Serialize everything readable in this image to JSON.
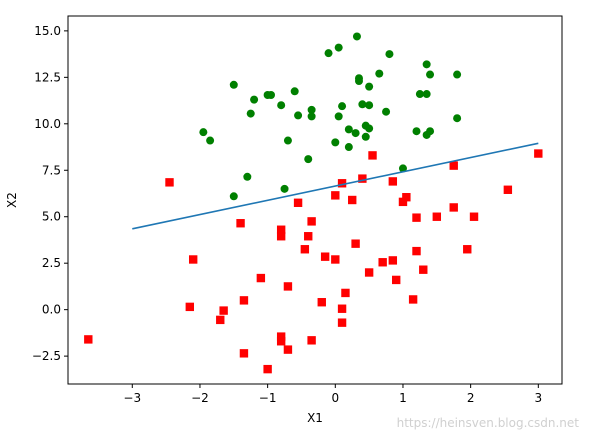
{
  "chart_data": {
    "type": "scatter",
    "xlabel": "X1",
    "ylabel": "X2",
    "xlim": [
      -3.95,
      3.35
    ],
    "ylim": [
      -4.0,
      15.8
    ],
    "x_ticks": [
      -3,
      -2,
      -1,
      0,
      1,
      2,
      3
    ],
    "x_tick_labels": [
      "−3",
      "−2",
      "−1",
      "0",
      "1",
      "2",
      "3"
    ],
    "y_ticks": [
      -2.5,
      0.0,
      2.5,
      5.0,
      7.5,
      10.0,
      12.5,
      15.0
    ],
    "y_tick_labels": [
      "−2.5",
      "0.0",
      "2.5",
      "5.0",
      "7.5",
      "10.0",
      "12.5",
      "15.0"
    ],
    "grid": false,
    "series": [
      {
        "marker": "circle",
        "color": "#008000",
        "points": [
          [
            0.32,
            14.7
          ],
          [
            0.05,
            14.1
          ],
          [
            -0.1,
            13.8
          ],
          [
            0.8,
            13.75
          ],
          [
            1.35,
            13.2
          ],
          [
            0.65,
            12.7
          ],
          [
            1.8,
            12.65
          ],
          [
            1.4,
            12.65
          ],
          [
            0.35,
            12.45
          ],
          [
            0.35,
            12.3
          ],
          [
            -1.5,
            12.1
          ],
          [
            0.5,
            12.0
          ],
          [
            -0.6,
            11.75
          ],
          [
            -1.0,
            11.55
          ],
          [
            -0.95,
            11.55
          ],
          [
            -1.2,
            11.3
          ],
          [
            1.25,
            11.6
          ],
          [
            1.35,
            11.6
          ],
          [
            -0.8,
            11.0
          ],
          [
            0.4,
            11.05
          ],
          [
            0.5,
            11.0
          ],
          [
            0.1,
            10.95
          ],
          [
            -0.35,
            10.75
          ],
          [
            -1.25,
            10.55
          ],
          [
            -0.55,
            10.45
          ],
          [
            0.75,
            10.65
          ],
          [
            -0.35,
            10.4
          ],
          [
            0.05,
            10.4
          ],
          [
            1.8,
            10.3
          ],
          [
            0.45,
            9.9
          ],
          [
            0.5,
            9.75
          ],
          [
            0.2,
            9.7
          ],
          [
            -1.95,
            9.55
          ],
          [
            0.3,
            9.5
          ],
          [
            1.2,
            9.6
          ],
          [
            1.4,
            9.6
          ],
          [
            1.35,
            9.4
          ],
          [
            -1.85,
            9.1
          ],
          [
            0.45,
            9.3
          ],
          [
            -0.7,
            9.1
          ],
          [
            0.0,
            9.0
          ],
          [
            0.2,
            8.75
          ],
          [
            -0.4,
            8.1
          ],
          [
            1.0,
            7.6
          ],
          [
            -1.3,
            7.15
          ],
          [
            -0.75,
            6.5
          ],
          [
            -1.5,
            6.1
          ]
        ]
      },
      {
        "marker": "square",
        "color": "#ff0000",
        "points": [
          [
            3.0,
            8.4
          ],
          [
            0.55,
            8.3
          ],
          [
            1.75,
            7.75
          ],
          [
            0.4,
            7.05
          ],
          [
            0.85,
            6.9
          ],
          [
            -2.45,
            6.85
          ],
          [
            0.1,
            6.8
          ],
          [
            2.55,
            6.45
          ],
          [
            0.0,
            6.15
          ],
          [
            1.05,
            6.05
          ],
          [
            0.25,
            5.9
          ],
          [
            -0.55,
            5.75
          ],
          [
            1.0,
            5.8
          ],
          [
            1.75,
            5.5
          ],
          [
            1.5,
            5.0
          ],
          [
            2.05,
            5.0
          ],
          [
            1.2,
            4.95
          ],
          [
            -0.35,
            4.75
          ],
          [
            -1.4,
            4.65
          ],
          [
            -0.8,
            4.3
          ],
          [
            -0.8,
            3.95
          ],
          [
            -0.4,
            3.95
          ],
          [
            0.3,
            3.55
          ],
          [
            -0.45,
            3.25
          ],
          [
            1.95,
            3.25
          ],
          [
            1.2,
            3.15
          ],
          [
            -0.15,
            2.85
          ],
          [
            0.0,
            2.7
          ],
          [
            -2.1,
            2.7
          ],
          [
            0.85,
            2.65
          ],
          [
            0.7,
            2.55
          ],
          [
            1.3,
            2.15
          ],
          [
            0.5,
            2.0
          ],
          [
            -1.1,
            1.7
          ],
          [
            0.9,
            1.6
          ],
          [
            -0.7,
            1.25
          ],
          [
            0.15,
            0.9
          ],
          [
            1.15,
            0.55
          ],
          [
            -1.35,
            0.5
          ],
          [
            -0.2,
            0.4
          ],
          [
            -2.15,
            0.15
          ],
          [
            0.1,
            0.05
          ],
          [
            -1.65,
            -0.05
          ],
          [
            -1.7,
            -0.55
          ],
          [
            0.1,
            -0.7
          ],
          [
            -3.65,
            -1.6
          ],
          [
            -0.8,
            -1.45
          ],
          [
            -0.35,
            -1.65
          ],
          [
            -0.8,
            -1.7
          ],
          [
            -0.7,
            -2.15
          ],
          [
            -1.35,
            -2.35
          ],
          [
            -1.0,
            -3.2
          ]
        ]
      },
      {
        "type": "line",
        "color": "#1f77b4",
        "x": [
          -3.0,
          3.0
        ],
        "y": [
          4.35,
          8.95
        ]
      }
    ]
  },
  "watermark": "https://heinsven.blog.csdn.net"
}
